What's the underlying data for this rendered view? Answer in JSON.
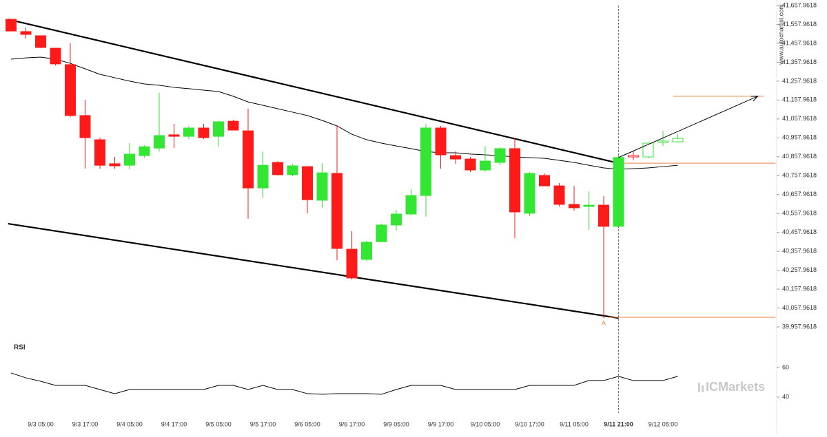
{
  "chart_data": {
    "type": "candlestick",
    "watermark": "www.autochartist.com",
    "brand": "ICMarkets",
    "categories": [
      null,
      null,
      "9/3 05:00",
      null,
      null,
      "9/3 17:00",
      null,
      null,
      "9/4 05:00",
      null,
      null,
      "9/4 17:00",
      null,
      null,
      "9/5 05:00",
      null,
      null,
      "9/5 17:00",
      null,
      null,
      "9/6 05:00",
      null,
      null,
      "9/6 17:00",
      null,
      null,
      "9/9 05:00",
      null,
      null,
      "9/9 17:00",
      null,
      null,
      "9/10 05:00",
      null,
      null,
      "9/10 17:00",
      null,
      null,
      "9/11 05:00",
      null,
      null,
      "9/11 21:00",
      null,
      null,
      "9/12 05:00",
      null
    ],
    "marker_x": 41,
    "series": [
      {
        "color_up": "#33e633",
        "color_down": "#ff1a1a",
        "style": "filled",
        "open": [
          41585,
          41520,
          41498,
          41432,
          41345,
          41076,
          40948,
          40821,
          40813,
          40864,
          40904,
          40974,
          40966,
          41010,
          40966,
          41046,
          40995,
          40693,
          40828,
          40763,
          40806,
          40628,
          40770,
          40369,
          40315,
          40409,
          40497,
          40555,
          40653,
          41010,
          40864,
          40846,
          40788,
          40828,
          40901,
          40559,
          40759,
          40704,
          40606,
          40595,
          40602,
          40490,
          null,
          null,
          null,
          null
        ],
        "high": [
          41585,
          41541,
          41498,
          41432,
          41458,
          41159,
          40959,
          40857,
          40930,
          40919,
          41196,
          41032,
          41021,
          41032,
          41050,
          41054,
          41112,
          40886,
          40835,
          40821,
          40806,
          40824,
          41025,
          40464,
          40413,
          40504,
          40577,
          40686,
          41032,
          41021,
          40886,
          40857,
          40915,
          40908,
          40959,
          40777,
          40770,
          40719,
          40704,
          40675,
          40650,
          40864,
          null,
          null,
          null,
          null
        ],
        "low": [
          41523,
          41483,
          41432,
          41341,
          41068,
          40795,
          40795,
          40795,
          40792,
          40854,
          40886,
          40904,
          40952,
          40952,
          40912,
          40999,
          40530,
          40639,
          40759,
          40755,
          40559,
          40588,
          40311,
          40209,
          40304,
          40406,
          40468,
          40548,
          40541,
          40795,
          40821,
          40777,
          40777,
          40813,
          40428,
          40544,
          40704,
          40595,
          40573,
          40471,
          40005,
          40490,
          null,
          null,
          null,
          null
        ],
        "close": [
          41523,
          41505,
          41436,
          41349,
          41076,
          40959,
          40813,
          40810,
          40872,
          40911,
          40970,
          40966,
          41010,
          40959,
          41043,
          40999,
          40693,
          40813,
          40763,
          40810,
          40631,
          40773,
          40373,
          40217,
          40406,
          40497,
          40555,
          40653,
          41010,
          40868,
          40846,
          40788,
          40835,
          40901,
          40566,
          40770,
          40704,
          40606,
          40588,
          40602,
          40490,
          40854,
          null,
          null,
          null,
          null
        ]
      },
      {
        "color_up": "#33e633",
        "color_down": "#ff1a1a",
        "style": "hollow",
        "open": [
          null,
          null,
          null,
          null,
          null,
          null,
          null,
          null,
          null,
          null,
          null,
          null,
          null,
          null,
          null,
          null,
          null,
          null,
          null,
          null,
          null,
          null,
          null,
          null,
          null,
          null,
          null,
          null,
          null,
          null,
          null,
          null,
          null,
          null,
          null,
          null,
          null,
          null,
          null,
          null,
          null,
          null,
          40864,
          40857,
          40934,
          40937
        ],
        "high": [
          null,
          null,
          null,
          null,
          null,
          null,
          null,
          null,
          null,
          null,
          null,
          null,
          null,
          null,
          null,
          null,
          null,
          null,
          null,
          null,
          null,
          null,
          null,
          null,
          null,
          null,
          null,
          null,
          null,
          null,
          null,
          null,
          null,
          null,
          null,
          null,
          null,
          null,
          null,
          null,
          null,
          null,
          40890,
          40930,
          40995,
          40977
        ],
        "low": [
          null,
          null,
          null,
          null,
          null,
          null,
          null,
          null,
          null,
          null,
          null,
          null,
          null,
          null,
          null,
          null,
          null,
          null,
          null,
          null,
          null,
          null,
          null,
          null,
          null,
          null,
          null,
          null,
          null,
          null,
          null,
          null,
          null,
          null,
          null,
          null,
          null,
          null,
          null,
          null,
          null,
          null,
          40839,
          40850,
          40915,
          40934
        ],
        "close": [
          null,
          null,
          null,
          null,
          null,
          null,
          null,
          null,
          null,
          null,
          null,
          null,
          null,
          null,
          null,
          null,
          null,
          null,
          null,
          null,
          null,
          null,
          null,
          null,
          null,
          null,
          null,
          null,
          null,
          null,
          null,
          null,
          null,
          null,
          null,
          null,
          null,
          null,
          null,
          null,
          null,
          null,
          40857,
          40930,
          40941,
          40955
        ]
      }
    ],
    "moving_average": {
      "color": "#000000",
      "values": [
        41374,
        41381,
        41385,
        41374,
        41352,
        41323,
        41294,
        41276,
        41258,
        41243,
        41236,
        41225,
        41218,
        41210,
        41203,
        41178,
        41148,
        41130,
        41112,
        41094,
        41076,
        41050,
        41021,
        40977,
        40948,
        40930,
        40915,
        40901,
        40886,
        40879,
        40879,
        40872,
        40868,
        40864,
        40857,
        40853,
        40850,
        40839,
        40828,
        40813,
        40799,
        40792,
        40795,
        40799,
        40806,
        40813
      ]
    },
    "trendlines": [
      {
        "color": "#000000",
        "x": [
          -0.2,
          41
        ],
        "y": [
          41585,
          40824
        ]
      },
      {
        "color": "#000000",
        "x": [
          -0.2,
          41
        ],
        "y": [
          40504,
          40005
        ]
      }
    ],
    "levels": [
      {
        "color": "#f08040",
        "y": 40824,
        "x": [
          41,
          51.6
        ]
      },
      {
        "color": "#f08040",
        "y": 40009,
        "x": [
          40.3,
          51.6
        ]
      },
      {
        "color": "#f08040",
        "y": 41178,
        "x": [
          44.7,
          50.8
        ]
      }
    ],
    "arrow": {
      "color": "#000000",
      "x": [
        41,
        50.4
      ],
      "y": [
        40854,
        41178
      ]
    },
    "point_label": {
      "text": "A",
      "x": 40,
      "y": 40005
    },
    "ylim": [
      39940,
      41687
    ],
    "yticks": [
      {
        "value": 41657.9618,
        "label": "41,657.9618"
      },
      {
        "value": 41557.9618,
        "label": "41,557.9618"
      },
      {
        "value": 41457.9618,
        "label": "41,457.9618"
      },
      {
        "value": 41357.9618,
        "label": "41,357.9618"
      },
      {
        "value": 41257.9618,
        "label": "41,257.9618"
      },
      {
        "value": 41157.9618,
        "label": "41,157.9618"
      },
      {
        "value": 41057.9618,
        "label": "41,057.9618"
      },
      {
        "value": 40957.9618,
        "label": "40,957.9618"
      },
      {
        "value": 40857.9618,
        "label": "40,857.9618"
      },
      {
        "value": 40757.9618,
        "label": "40,757.9618"
      },
      {
        "value": 40657.9618,
        "label": "40,657.9618"
      },
      {
        "value": 40557.9618,
        "label": "40,557.9618"
      },
      {
        "value": 40457.9618,
        "label": "40,457.9618"
      },
      {
        "value": 40357.9618,
        "label": "40,357.9618"
      },
      {
        "value": 40257.9618,
        "label": "40,257.9618"
      },
      {
        "value": 40157.9618,
        "label": "40,157.9618"
      },
      {
        "value": 40057.9618,
        "label": "40,057.9618"
      },
      {
        "value": 39957.9618,
        "label": "39,957.9618"
      }
    ],
    "rsi": {
      "title": "RSI",
      "color": "#000000",
      "values": [
        56.3,
        53.0,
        50.7,
        47.9,
        47.9,
        47.9,
        45.1,
        42.3,
        45.1,
        45.1,
        45.1,
        45.1,
        45.1,
        45.1,
        47.9,
        47.9,
        45.1,
        47.9,
        45.1,
        45.1,
        42.3,
        41.9,
        42.3,
        42.3,
        42.3,
        41.9,
        45.1,
        47.9,
        47.9,
        47.9,
        45.1,
        45.1,
        45.1,
        45.1,
        45.1,
        47.9,
        47.9,
        47.9,
        47.9,
        51.2,
        51.2,
        54.0,
        51.2,
        51.2,
        51.2,
        54.0
      ],
      "ylim": [
        30,
        80
      ],
      "yticks": [
        60,
        40
      ]
    }
  }
}
